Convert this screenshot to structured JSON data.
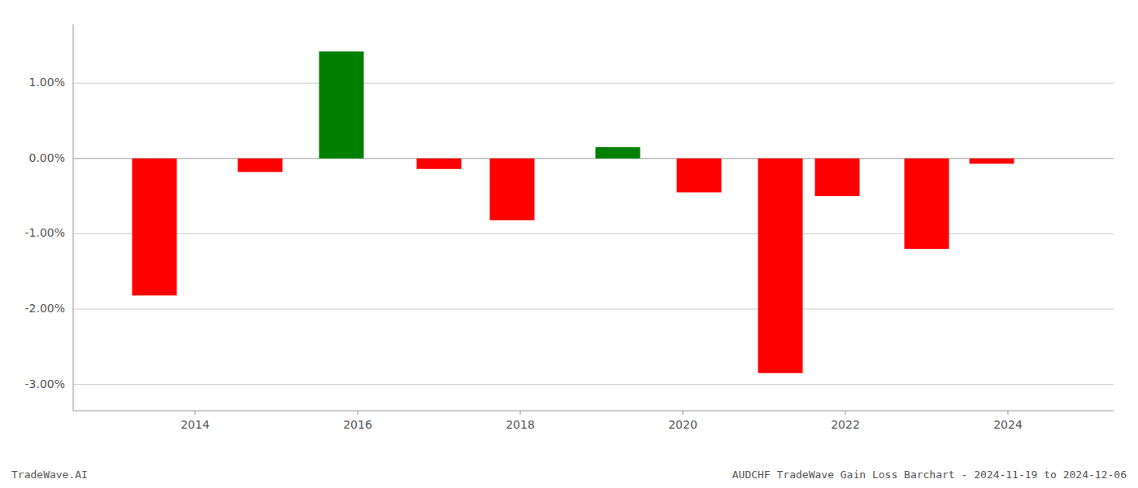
{
  "chart_data": {
    "type": "bar",
    "title": "AUDCHF TradeWave Gain Loss Barchart - 2024-11-19 to 2024-12-06",
    "annotations": [
      "TradeWave.AI"
    ],
    "x": [
      2013.5,
      2014.8,
      2015.8,
      2017.0,
      2017.9,
      2019.2,
      2020.2,
      2021.2,
      2021.9,
      2023.0,
      2023.8
    ],
    "values": [
      -1.82,
      -0.18,
      1.42,
      -0.14,
      -0.82,
      0.15,
      -0.45,
      -2.85,
      -0.5,
      -1.2,
      -0.07
    ],
    "colors": [
      "#ff0000",
      "#ff0000",
      "#008000",
      "#ff0000",
      "#ff0000",
      "#008000",
      "#ff0000",
      "#ff0000",
      "#ff0000",
      "#ff0000",
      "#ff0000"
    ],
    "xlim": [
      2012.5,
      2025.3
    ],
    "xticks": [
      2014,
      2016,
      2018,
      2020,
      2022,
      2024
    ],
    "ylim": [
      -3.35,
      1.78
    ],
    "yticks": [
      {
        "value": -3.0,
        "label": "-3.00%"
      },
      {
        "value": -2.0,
        "label": "-2.00%"
      },
      {
        "value": -1.0,
        "label": "-1.00%"
      },
      {
        "value": 0.0,
        "label": "0.00%"
      },
      {
        "value": 1.0,
        "label": "1.00%"
      }
    ],
    "grid": true
  }
}
